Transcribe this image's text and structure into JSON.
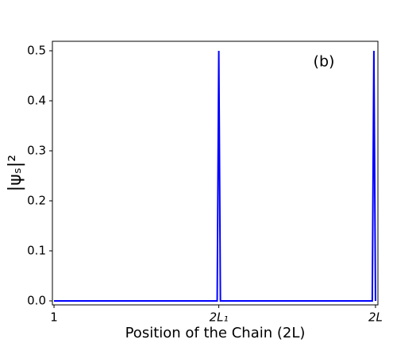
{
  "chart_data": {
    "type": "line",
    "annotation": "(b)",
    "x_label": "Position of the Chain (2L)",
    "y_label": "|ψₛ|²",
    "x": [
      1,
      102,
      103,
      104,
      198,
      199,
      200
    ],
    "series": [
      {
        "color": "#0000ff",
        "values": [
          0,
          0,
          0.5,
          0,
          0,
          0.5,
          0
        ]
      }
    ],
    "xlim": [
      0,
      201.5
    ],
    "xticks": [
      1,
      {
        "value": 103,
        "label": "2L₁"
      },
      {
        "value": 200,
        "label": "2L"
      }
    ],
    "ylim": [
      -0.008,
      0.519
    ],
    "yticks": [
      {
        "value": 0,
        "label": "0.0"
      },
      0.1,
      0.2,
      0.3,
      0.4,
      0.5
    ]
  }
}
